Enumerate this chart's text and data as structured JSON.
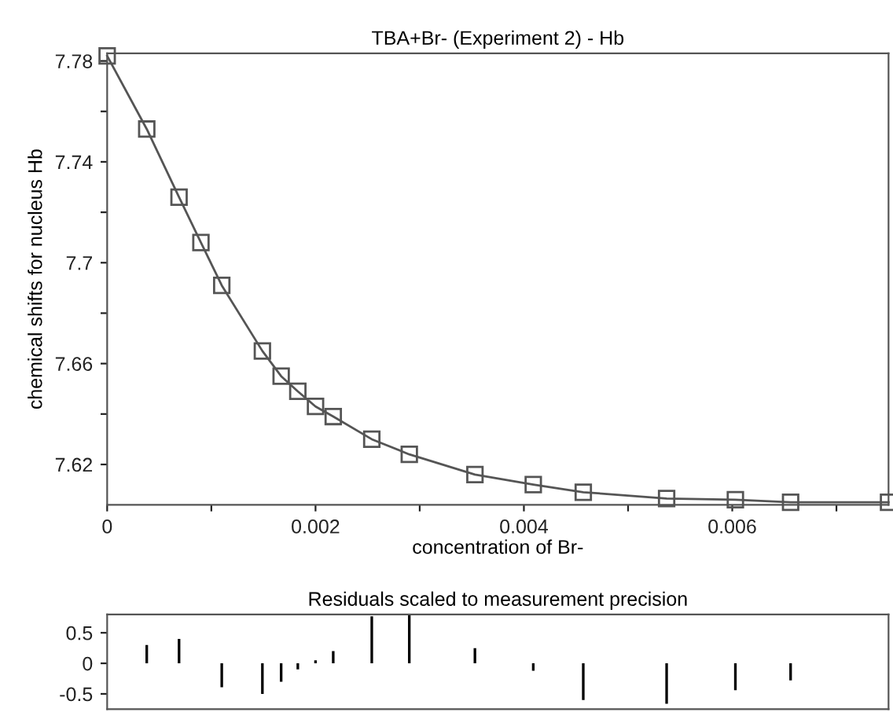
{
  "chart_data": [
    {
      "type": "line",
      "title": "TBA+Br- (Experiment 2) - Hb",
      "xlabel": "concentration of Br-",
      "ylabel": "chemical shifts for nucleus Hb",
      "marker": "square",
      "grid": false,
      "x": [
        0,
        0.00038,
        0.00069,
        0.0009,
        0.0011,
        0.00149,
        0.00167,
        0.00183,
        0.002,
        0.00217,
        0.00254,
        0.0029,
        0.00353,
        0.00409,
        0.00457,
        0.00537,
        0.00603,
        0.00656,
        0.0075
      ],
      "series": [
        {
          "color": "#555555",
          "values": [
            7.782,
            7.753,
            7.726,
            7.708,
            7.691,
            7.665,
            7.655,
            7.649,
            7.643,
            7.639,
            7.63,
            7.624,
            7.616,
            7.612,
            7.609,
            7.6065,
            7.606,
            7.605,
            7.605
          ]
        }
      ],
      "xlim": [
        0,
        0.0075
      ],
      "xticks": [
        0,
        {
          "value": 0.001,
          "label": null
        },
        0.002,
        {
          "value": 0.003,
          "label": null
        },
        0.004,
        {
          "value": 0.005,
          "label": null
        },
        0.006,
        {
          "value": 0.007,
          "label": null
        }
      ],
      "ylim": [
        7.604,
        7.783
      ],
      "yticks": [
        7.62,
        {
          "value": 7.64,
          "label": null
        },
        7.66,
        {
          "value": 7.68,
          "label": null
        },
        7.7,
        {
          "value": 7.72,
          "label": null
        },
        7.74,
        {
          "value": 7.76,
          "label": null
        },
        7.78
      ]
    },
    {
      "type": "bar",
      "title": "Residuals scaled to measurement precision",
      "tick_labels": "y",
      "grid": false,
      "x": [
        0.00038,
        0.00069,
        0.0011,
        0.00149,
        0.00167,
        0.00183,
        0.002,
        0.00217,
        0.00254,
        0.0029,
        0.00353,
        0.00409,
        0.00457,
        0.00537,
        0.00603,
        0.00656
      ],
      "series": [
        {
          "color": "#000000",
          "values": [
            0.3,
            0.4,
            -0.39,
            -0.5,
            -0.3,
            -0.1,
            0.05,
            0.2,
            0.77,
            0.8,
            0.25,
            -0.12,
            -0.6,
            -0.66,
            -0.44,
            -0.28
          ]
        }
      ],
      "xlim": [
        0,
        0.0075
      ],
      "ylim": [
        -0.75,
        0.8
      ],
      "yticks": [
        -0.5,
        0,
        0.5
      ]
    }
  ]
}
